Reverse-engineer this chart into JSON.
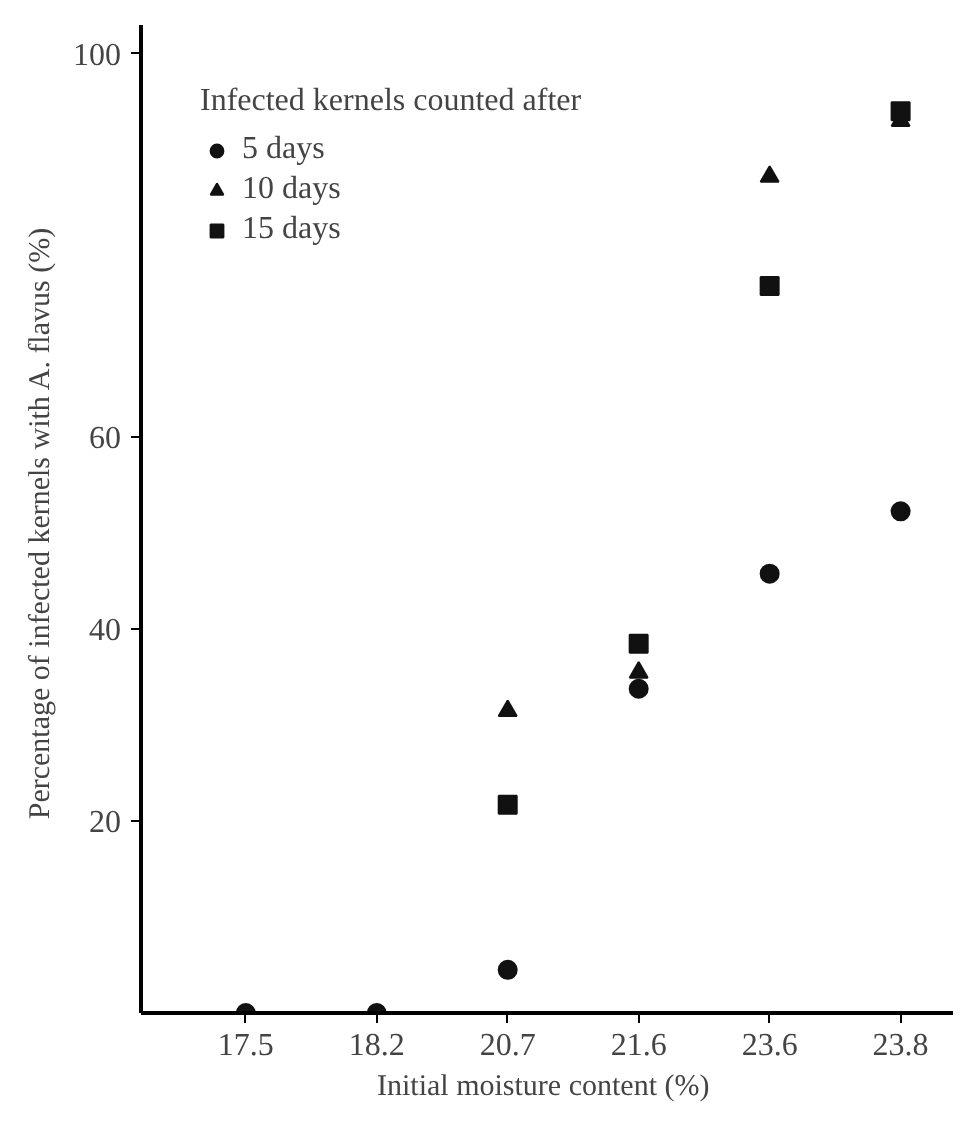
{
  "chart_data": {
    "type": "scatter",
    "xlabel": "Initial moisture content  (%)",
    "ylabel": "Percentage of infected kernels with A. flavus  (%)",
    "legend_title": "Infected kernels counted after",
    "categories": [
      "17.5",
      "18.2",
      "20.7",
      "21.6",
      "23.6",
      "23.8"
    ],
    "series": [
      {
        "name": "5 days",
        "color": "#111111",
        "marker": "circle",
        "values": [
          0,
          0,
          4.5,
          33.8,
          45.8,
          52.3
        ]
      },
      {
        "name": "10 days",
        "color": "#111111",
        "marker": "triangle",
        "values": [
          null,
          null,
          31.5,
          35.5,
          87.2,
          93
        ]
      },
      {
        "name": "15 days",
        "color": "#111111",
        "marker": "square",
        "values": [
          null,
          null,
          21.7,
          38.5,
          75.8,
          94
        ]
      }
    ],
    "ylim": [
      0,
      103
    ],
    "yticks": [
      20,
      40,
      60,
      100
    ],
    "grid": false,
    "legend": "top left"
  }
}
